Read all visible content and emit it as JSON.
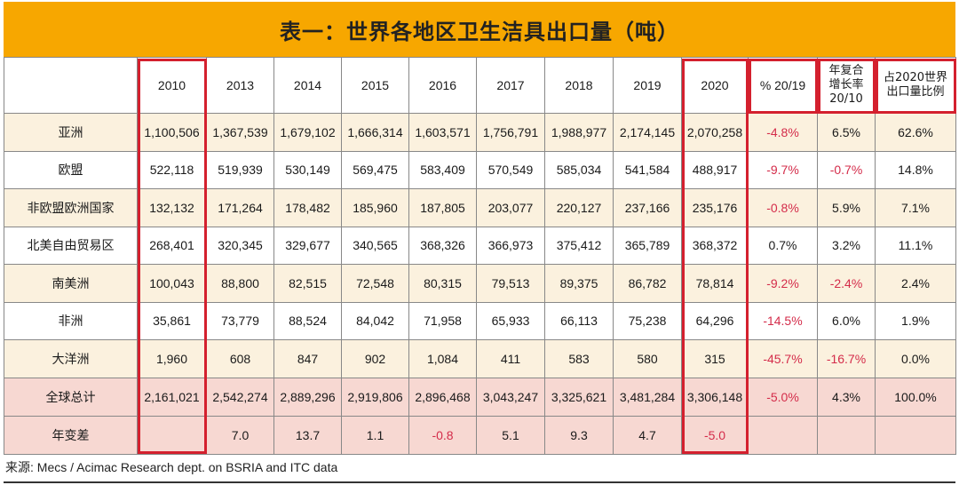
{
  "title": "表一：世界各地区卫生洁具出口量（吨）",
  "source": "来源: Mecs / Acimac Research dept. on BSRIA and ITC data",
  "colors": {
    "header_bg": "#f7a700",
    "highlight_border": "#d4202e",
    "negative": "#d42c4a",
    "row_tint": "#fbf1de",
    "total_tint": "#f7d8d2"
  },
  "chart_data": {
    "type": "table",
    "title": "表一：世界各地区卫生洁具出口量（吨）",
    "columns": [
      "",
      "2010",
      "2013",
      "2014",
      "2015",
      "2016",
      "2017",
      "2018",
      "2019",
      "2020",
      "% 20/19",
      "年复合增长率 20/10",
      "占2020世界出口量比例"
    ],
    "rows": [
      {
        "label": "亚洲",
        "cells": [
          "1,100,506",
          "1,367,539",
          "1,679,102",
          "1,666,314",
          "1,603,571",
          "1,756,791",
          "1,988,977",
          "2,174,145",
          "2,070,258",
          "-4.8%",
          "6.5%",
          "62.6%"
        ]
      },
      {
        "label": "欧盟",
        "cells": [
          "522,118",
          "519,939",
          "530,149",
          "569,475",
          "583,409",
          "570,549",
          "585,034",
          "541,584",
          "488,917",
          "-9.7%",
          "-0.7%",
          "14.8%"
        ]
      },
      {
        "label": "非欧盟欧洲国家",
        "cells": [
          "132,132",
          "171,264",
          "178,482",
          "185,960",
          "187,805",
          "203,077",
          "220,127",
          "237,166",
          "235,176",
          "-0.8%",
          "5.9%",
          "7.1%"
        ]
      },
      {
        "label": "北美自由贸易区",
        "cells": [
          "268,401",
          "320,345",
          "329,677",
          "340,565",
          "368,326",
          "366,973",
          "375,412",
          "365,789",
          "368,372",
          "0.7%",
          "3.2%",
          "11.1%"
        ]
      },
      {
        "label": "南美洲",
        "cells": [
          "100,043",
          "88,800",
          "82,515",
          "72,548",
          "80,315",
          "79,513",
          "89,375",
          "86,782",
          "78,814",
          "-9.2%",
          "-2.4%",
          "2.4%"
        ]
      },
      {
        "label": "非洲",
        "cells": [
          "35,861",
          "73,779",
          "88,524",
          "84,042",
          "71,958",
          "65,933",
          "66,113",
          "75,238",
          "64,296",
          "-14.5%",
          "6.0%",
          "1.9%"
        ]
      },
      {
        "label": "大洋洲",
        "cells": [
          "1,960",
          "608",
          "847",
          "902",
          "1,084",
          "411",
          "583",
          "580",
          "315",
          "-45.7%",
          "-16.7%",
          "0.0%"
        ]
      },
      {
        "label": "全球总计",
        "cells": [
          "2,161,021",
          "2,542,274",
          "2,889,296",
          "2,919,806",
          "2,896,468",
          "3,043,247",
          "3,325,621",
          "3,481,284",
          "3,306,148",
          "-5.0%",
          "4.3%",
          "100.0%"
        ]
      },
      {
        "label": "年变差",
        "cells": [
          "",
          "7.0",
          "13.7",
          "1.1",
          "-0.8",
          "5.1",
          "9.3",
          "4.7",
          "-5.0",
          "",
          "",
          ""
        ]
      }
    ],
    "highlighted_columns": [
      "2010",
      "2020"
    ],
    "highlighted_header_columns": [
      "% 20/19",
      "年复合增长率 20/10",
      "占2020世界出口量比例"
    ]
  }
}
